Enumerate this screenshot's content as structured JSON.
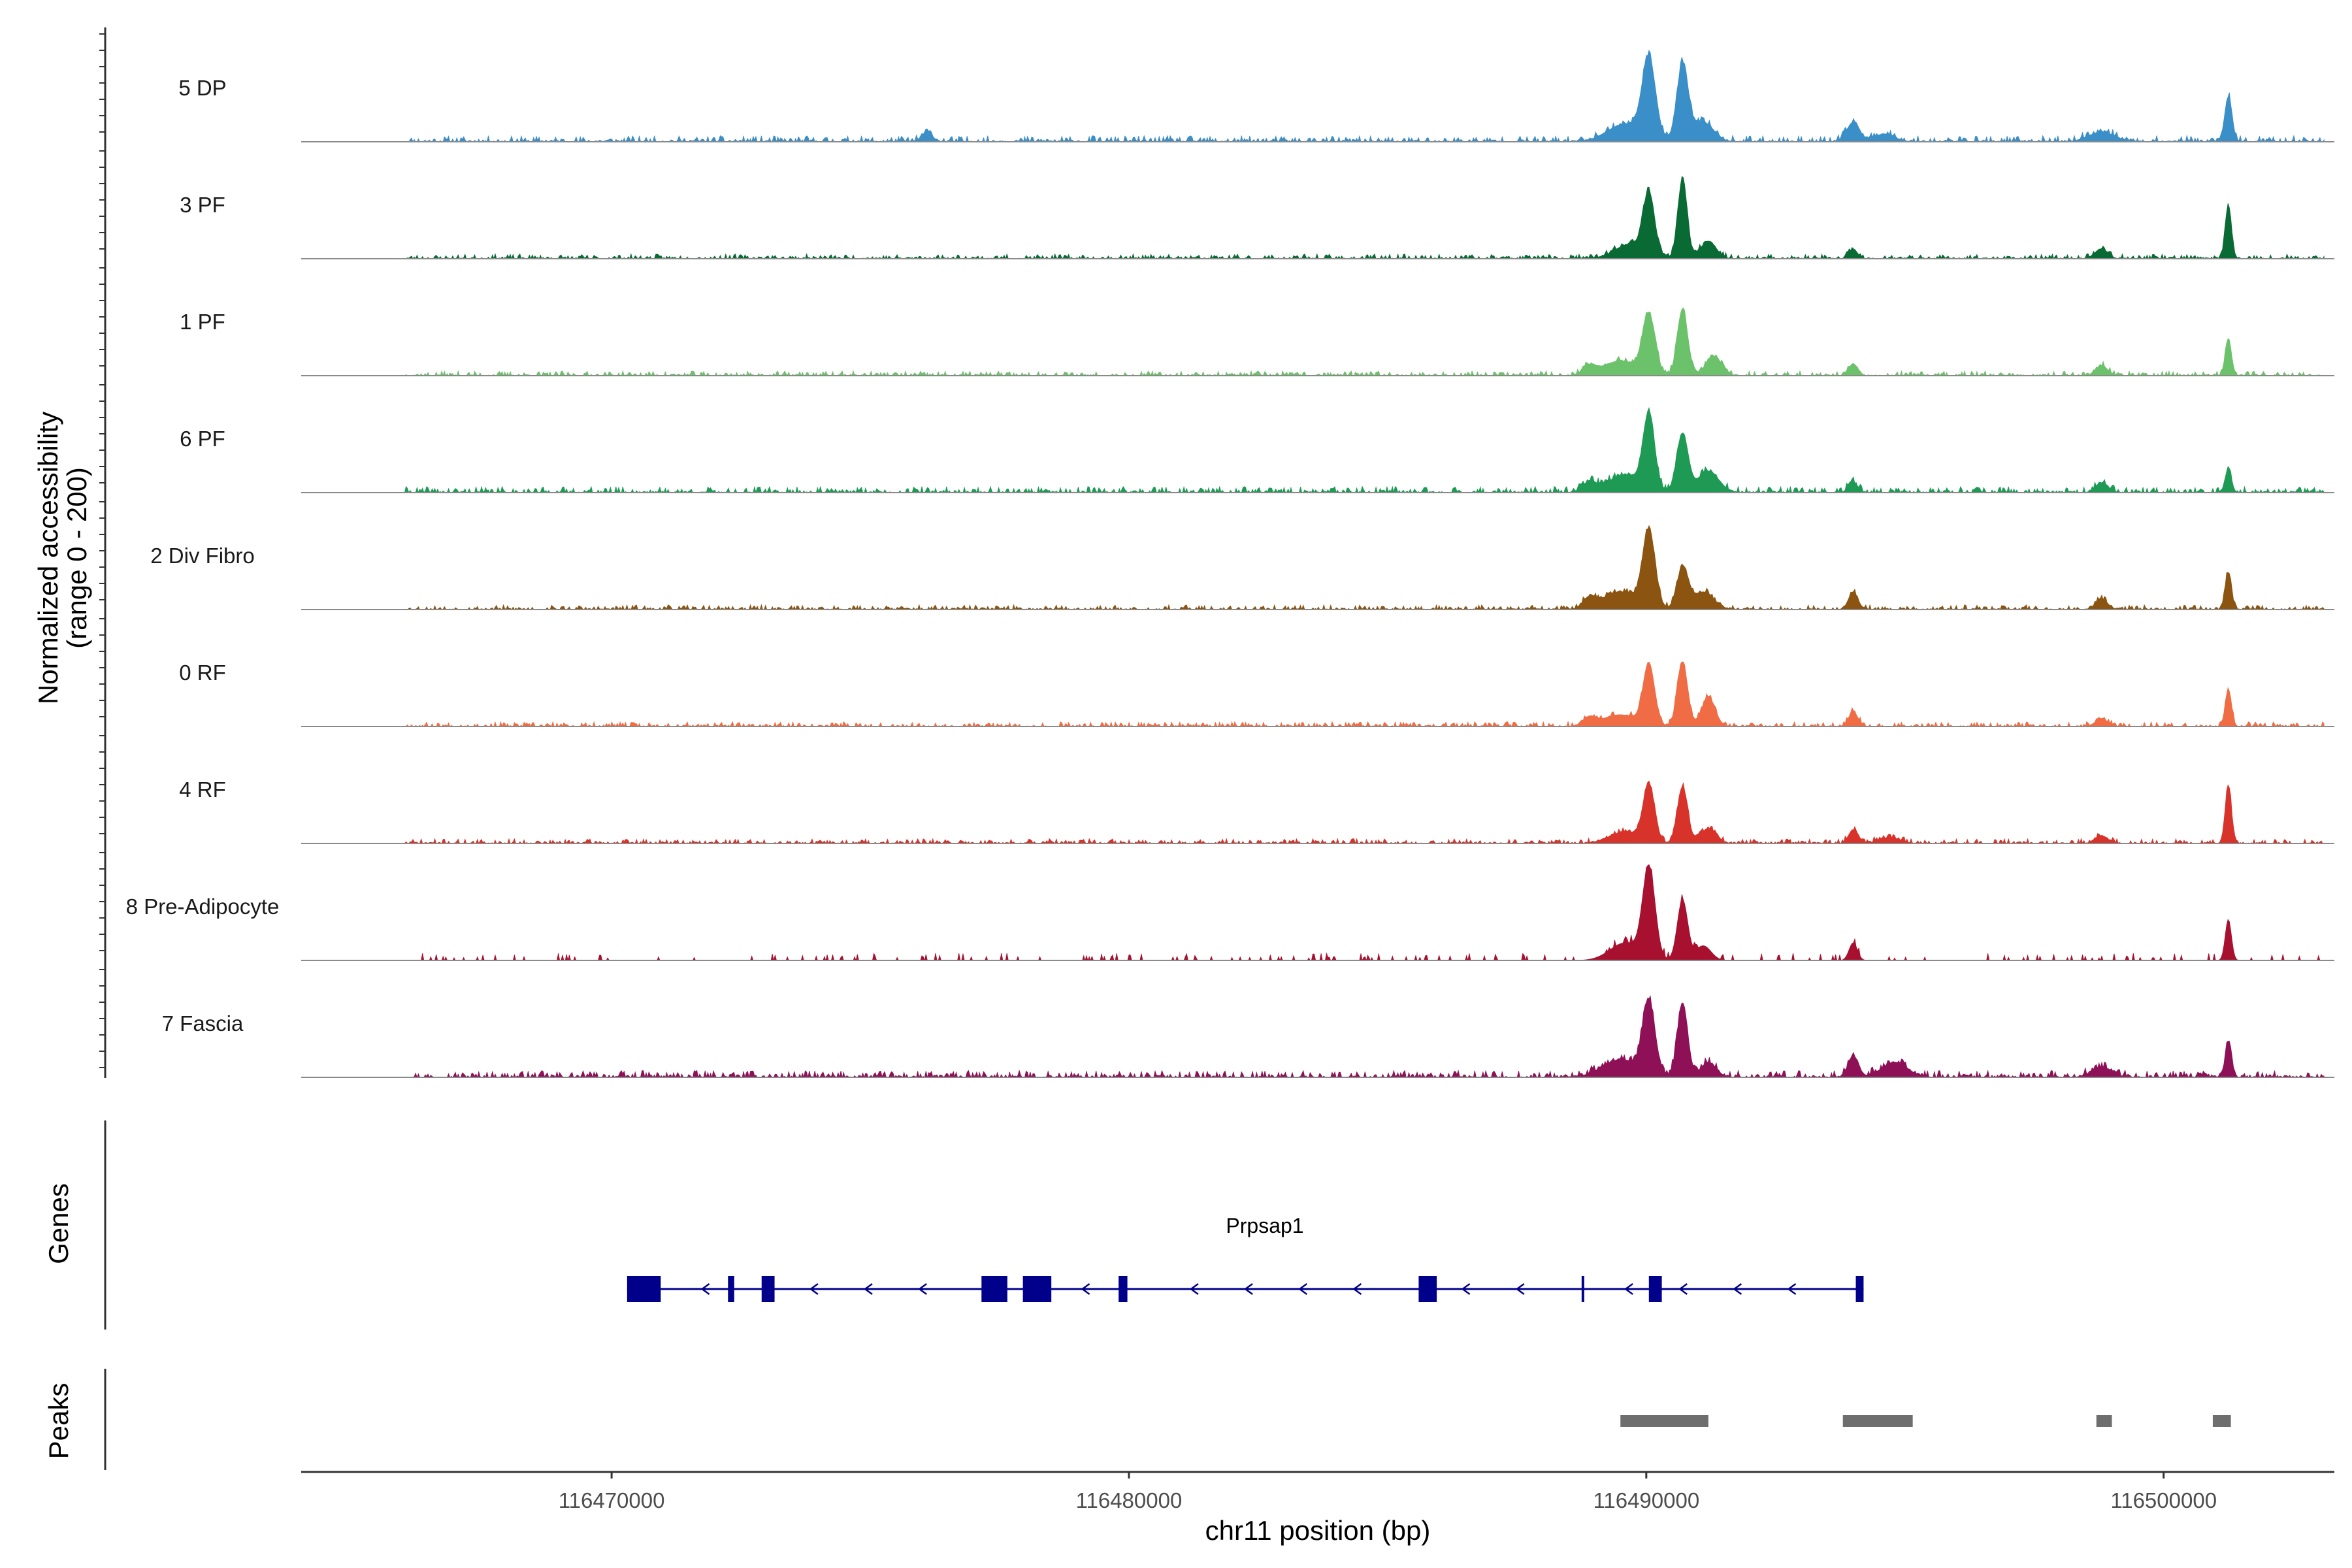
{
  "chart_data": {
    "type": "area",
    "title": "",
    "ylabel_line1": "Normalized accessibility",
    "ylabel_line2": "(range 0 - 200)",
    "xlabel": "chr11 position (bp)",
    "xlim": [
      116464000,
      116503300
    ],
    "ylim": [
      0,
      200
    ],
    "xticks": [
      {
        "value": 116470000,
        "label": "116470000"
      },
      {
        "value": 116480000,
        "label": "116480000"
      },
      {
        "value": 116490000,
        "label": "116490000"
      },
      {
        "value": 116500000,
        "label": "116500000"
      }
    ],
    "tracks": [
      {
        "name": "5 DP",
        "color": "#3a8fc8",
        "sparse": false,
        "seed": 11,
        "scale": 1.0,
        "noise": 0.045,
        "peaks": [
          [
            116476100,
            0.1,
            100
          ],
          [
            116490050,
            0.8,
            130
          ],
          [
            116490700,
            0.78,
            110
          ],
          [
            116489600,
            0.18,
            350
          ],
          [
            116491100,
            0.2,
            200
          ],
          [
            116494000,
            0.2,
            120
          ],
          [
            116494600,
            0.08,
            200
          ],
          [
            116498800,
            0.1,
            250
          ],
          [
            116501250,
            0.46,
            70
          ]
        ]
      },
      {
        "name": "3 PF",
        "color": "#0a6a34",
        "sparse": false,
        "seed": 23,
        "scale": 1.0,
        "noise": 0.035,
        "peaks": [
          [
            116490050,
            0.62,
            110
          ],
          [
            116490700,
            0.82,
            90
          ],
          [
            116489700,
            0.15,
            300
          ],
          [
            116491200,
            0.18,
            150
          ],
          [
            116494000,
            0.1,
            80
          ],
          [
            116498800,
            0.1,
            120
          ],
          [
            116501250,
            0.55,
            60
          ]
        ]
      },
      {
        "name": "1 PF",
        "color": "#6cc26a",
        "sparse": false,
        "seed": 37,
        "scale": 1.0,
        "noise": 0.035,
        "peaks": [
          [
            116490050,
            0.6,
            120
          ],
          [
            116490700,
            0.68,
            100
          ],
          [
            116489500,
            0.15,
            350
          ],
          [
            116491300,
            0.2,
            150
          ],
          [
            116488900,
            0.08,
            120
          ],
          [
            116494000,
            0.12,
            90
          ],
          [
            116498800,
            0.1,
            120
          ],
          [
            116501250,
            0.38,
            60
          ]
        ]
      },
      {
        "name": "6 PF",
        "color": "#1e9a55",
        "sparse": false,
        "seed": 41,
        "scale": 1.0,
        "noise": 0.045,
        "peaks": [
          [
            116490050,
            0.75,
            110
          ],
          [
            116490700,
            0.6,
            110
          ],
          [
            116489600,
            0.18,
            350
          ],
          [
            116491200,
            0.22,
            200
          ],
          [
            116488900,
            0.1,
            120
          ],
          [
            116494000,
            0.1,
            90
          ],
          [
            116498800,
            0.1,
            120
          ],
          [
            116501250,
            0.25,
            60
          ]
        ]
      },
      {
        "name": "2 Div Fibro",
        "color": "#8b5410",
        "sparse": false,
        "seed": 53,
        "scale": 1.0,
        "noise": 0.035,
        "peaks": [
          [
            116490050,
            0.78,
            120
          ],
          [
            116490700,
            0.42,
            110
          ],
          [
            116489500,
            0.18,
            350
          ],
          [
            116491100,
            0.18,
            200
          ],
          [
            116488900,
            0.1,
            120
          ],
          [
            116494000,
            0.18,
            90
          ],
          [
            116498800,
            0.1,
            120
          ],
          [
            116501250,
            0.38,
            60
          ]
        ]
      },
      {
        "name": "0 RF",
        "color": "#ef6c44",
        "sparse": false,
        "seed": 67,
        "scale": 1.0,
        "noise": 0.035,
        "peaks": [
          [
            116490050,
            0.62,
            110
          ],
          [
            116490700,
            0.66,
            100
          ],
          [
            116489500,
            0.12,
            350
          ],
          [
            116491200,
            0.3,
            130
          ],
          [
            116488900,
            0.08,
            120
          ],
          [
            116494000,
            0.15,
            90
          ],
          [
            116498800,
            0.08,
            120
          ],
          [
            116501250,
            0.38,
            60
          ]
        ]
      },
      {
        "name": "4 RF",
        "color": "#d8332a",
        "sparse": false,
        "seed": 71,
        "scale": 1.0,
        "noise": 0.035,
        "peaks": [
          [
            116490050,
            0.58,
            110
          ],
          [
            116490700,
            0.58,
            100
          ],
          [
            116489600,
            0.12,
            300
          ],
          [
            116491200,
            0.15,
            150
          ],
          [
            116494000,
            0.14,
            90
          ],
          [
            116494700,
            0.06,
            200
          ],
          [
            116498800,
            0.08,
            120
          ],
          [
            116501250,
            0.6,
            60
          ]
        ]
      },
      {
        "name": "8 Pre-Adipocyte",
        "color": "#a8102f",
        "sparse": true,
        "seed": 83,
        "scale": 1.0,
        "noise": 0.05,
        "peaks": [
          [
            116490050,
            0.92,
            120
          ],
          [
            116490700,
            0.62,
            100
          ],
          [
            116489600,
            0.18,
            300
          ],
          [
            116491100,
            0.15,
            150
          ],
          [
            116494000,
            0.18,
            80
          ],
          [
            116501250,
            0.42,
            60
          ]
        ]
      },
      {
        "name": "7 Fascia",
        "color": "#8e1158",
        "sparse": false,
        "seed": 97,
        "scale": 1.0,
        "noise": 0.05,
        "peaks": [
          [
            116490050,
            0.75,
            120
          ],
          [
            116490700,
            0.76,
            100
          ],
          [
            116489500,
            0.18,
            350
          ],
          [
            116491200,
            0.15,
            150
          ],
          [
            116494000,
            0.22,
            100
          ],
          [
            116494800,
            0.15,
            250
          ],
          [
            116498800,
            0.1,
            200
          ],
          [
            116501250,
            0.37,
            60
          ]
        ]
      }
    ],
    "genes": {
      "title": "Genes",
      "name": "Prpsap1",
      "color": "#00008b",
      "start": 116470300,
      "end": 116494200,
      "strand": "-",
      "exons": [
        [
          116470300,
          116470950
        ],
        [
          116472250,
          116472370
        ],
        [
          116472900,
          116473150
        ],
        [
          116477150,
          116477650
        ],
        [
          116477950,
          116478500
        ],
        [
          116479800,
          116479970
        ],
        [
          116485600,
          116485950
        ],
        [
          116488750,
          116488800
        ],
        [
          116490050,
          116490300
        ],
        [
          116494050,
          116494200
        ]
      ]
    },
    "peaks": {
      "title": "Peaks",
      "color": "#6e6e6e",
      "regions": [
        [
          116489500,
          116491200
        ],
        [
          116493800,
          116495150
        ],
        [
          116498700,
          116499000
        ],
        [
          116500950,
          116501300
        ]
      ]
    }
  }
}
